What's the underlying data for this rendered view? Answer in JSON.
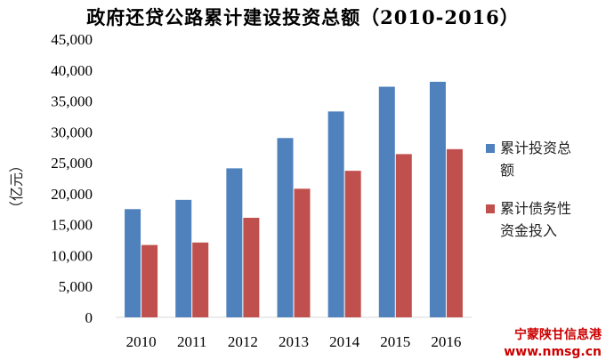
{
  "chart_data": {
    "type": "bar",
    "title": "政府还贷公路累计建设投资总额（2010-2016）",
    "ylabel": "（亿元）",
    "xlabel": "",
    "categories": [
      "2010",
      "2011",
      "2012",
      "2013",
      "2014",
      "2015",
      "2016"
    ],
    "series": [
      {
        "name_lines": [
          "累计投资总",
          "额"
        ],
        "color": "#4F81BD",
        "values": [
          17500,
          19000,
          24100,
          29000,
          33300,
          37300,
          38100
        ]
      },
      {
        "name_lines": [
          "累计债务性",
          "资金投入"
        ],
        "color": "#C0504D",
        "values": [
          11700,
          12100,
          16100,
          20800,
          23700,
          26400,
          27200
        ]
      }
    ],
    "ylim": [
      0,
      45000
    ],
    "yticks": [
      "0",
      "5,000",
      "10,000",
      "15,000",
      "20,000",
      "25,000",
      "30,000",
      "35,000",
      "40,000",
      "45,000"
    ],
    "grid": false,
    "legend_position": "right"
  },
  "watermark": {
    "line1": "宁蒙陕甘信息港",
    "line2": "www.nmsg.cn",
    "color": "#cc0000"
  }
}
